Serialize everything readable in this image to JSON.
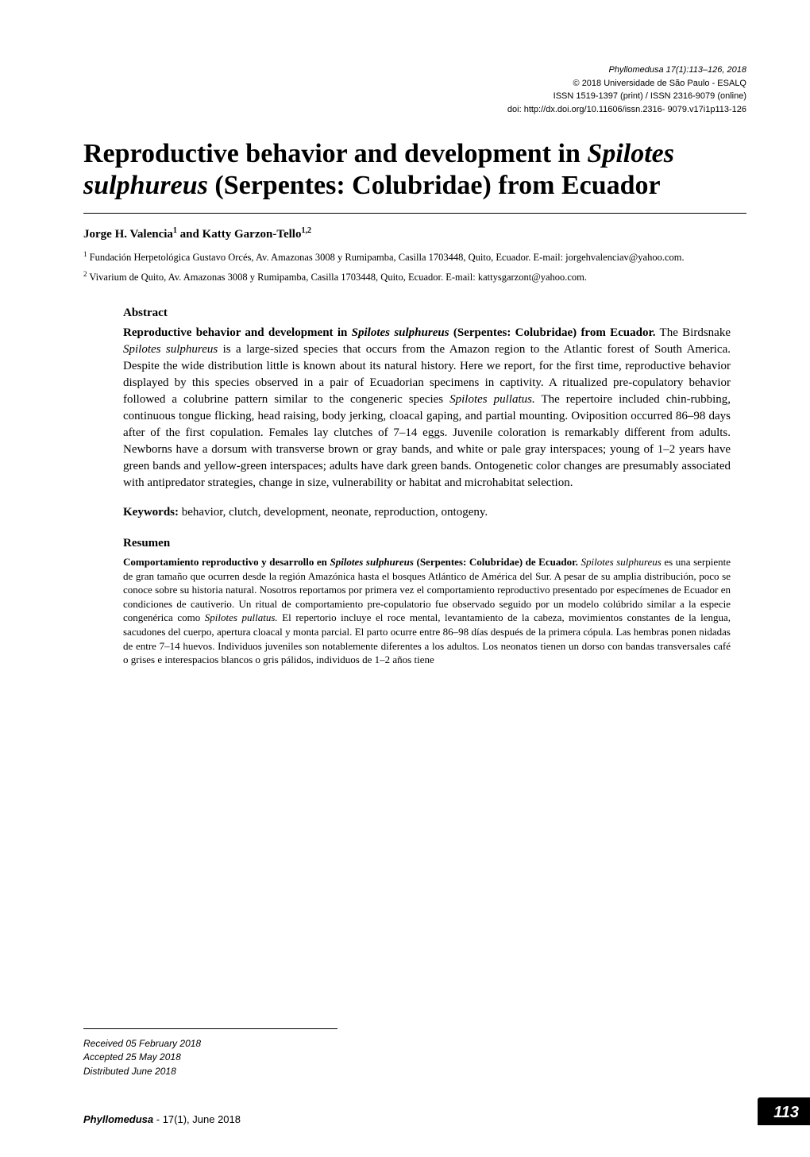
{
  "header": {
    "journal_issue": "Phyllomedusa 17(1):113–126, 2018",
    "copyright": "© 2018 Universidade de São Paulo - ESALQ",
    "issn": "ISSN 1519-1397 (print) / ISSN 2316-9079 (online)",
    "doi": "doi: http://dx.doi.org/10.11606/issn.2316- 9079.v17i1p113-126"
  },
  "title": {
    "prefix": "Reproductive behavior and development in ",
    "species": "Spilotes sulphureus",
    "suffix": " (Serpentes:  Colubridae) from Ecuador"
  },
  "authors": {
    "text": "Jorge H. Valencia",
    "sup1": "1",
    "and": " and Katty Garzon-Tello",
    "sup2": "1,2"
  },
  "affiliations": [
    {
      "num": "1",
      "text": " Fundación Herpetológica Gustavo Orcés, Av. Amazonas 3008 y Rumipamba, Casilla 1703448, Quito, Ecuador. E-mail: jorgehvalenciav@yahoo.com."
    },
    {
      "num": "2",
      "text": " Vivarium de Quito, Av. Amazonas 3008 y Rumipamba, Casilla 1703448, Quito, Ecuador. E-mail: kattysgarzont@yahoo.com."
    }
  ],
  "abstract": {
    "heading": "Abstract",
    "bold_prefix": "Reproductive behavior and development in ",
    "bold_species": "Spilotes sulphureus",
    "bold_suffix": " (Serpentes:  Colubridae) from Ecuador.",
    "body1": " The Birdsnake ",
    "species2": "Spilotes sulphureus",
    "body2": " is a large-sized species that occurs from the Amazon region to the Atlantic forest of South America. Despite the wide distribution little is known about its natural history. Here we report, for the first time, reproductive behavior displayed by this species observed in a pair of Ecuadorian specimens in captivity. A ritualized pre-copulatory behavior followed a colubrine pattern similar to the congeneric species ",
    "species3": "Spilotes pullatus.",
    "body3": " The repertoire included chin-rubbing, continuous tongue flicking, head raising, body jerking, cloacal gaping, and partial mounting. Oviposition occurred 86–98 days after of the first copulation. Females lay clutches of 7–14 eggs. Juvenile coloration is remarkably different from adults. Newborns have a dorsum with transverse brown or gray bands, and white or pale gray interspaces; young of 1–2 years have green bands and yellow-green interspaces; adults have dark green bands. Ontogenetic color changes are presumably associated with antipredator strategies, change in size, vulnerability or habitat and microhabitat selection."
  },
  "keywords": {
    "label": "Keywords:",
    "text": "  behavior, clutch, development, neonate, reproduction, ontogeny."
  },
  "resumen": {
    "heading": "Resumen",
    "bold_prefix": "Comportamiento reproductivo y desarrollo en ",
    "bold_species": "Spilotes sulphureus",
    "bold_suffix": " (Serpentes:  Colubridae) de Ecuador.",
    "body1": " ",
    "species2": "Spilotes sulphureus",
    "body2": " es una serpiente de gran tamaño que ocurren desde la región Amazónica hasta el bosques Atlántico de América del Sur. A pesar de su amplia distribución, poco se conoce sobre su historia natural. Nosotros reportamos por primera vez el comportamiento reproductivo presentado por especímenes de Ecuador en condiciones de cautiverio. Un ritual de comportamiento pre-copulatorio fue observado seguido por un modelo colúbrido similar a la especie congenérica como ",
    "species3": "Spilotes pullatus.",
    "body3": " El repertorio incluye el roce mental, levantamiento de la cabeza, movimientos constantes de la lengua, sacudones del cuerpo, apertura cloacal y monta parcial. El parto ocurre entre 86–98 días después de la primera cópula. Las hembras ponen nidadas de entre 7–14 huevos. Individuos juveniles son notablemente diferentes a los adultos. Los neonatos tienen un dorso con bandas transversales café o grises e interespacios blancos o gris pálidos, individuos de 1–2 años tiene"
  },
  "footer": {
    "received": "Received 05 February 2018",
    "accepted": "Accepted 25 May 2018",
    "distributed": "Distributed June 2018",
    "journal": "Phyllomedusa",
    "issue_info": " - 17(1), June 2018",
    "page_number": "113"
  }
}
